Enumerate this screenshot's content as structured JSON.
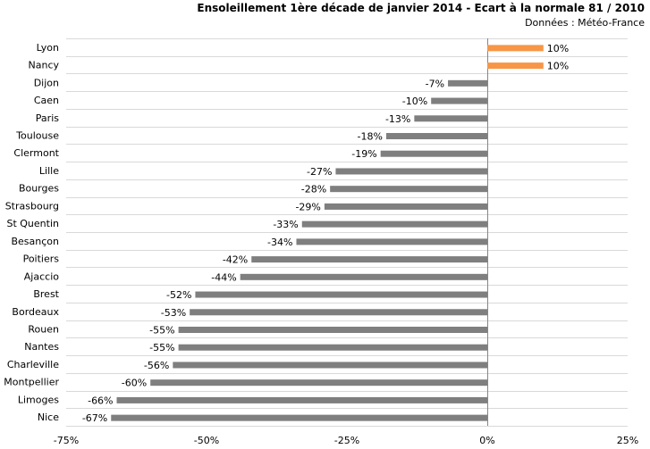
{
  "chart_data": {
    "type": "bar",
    "orientation": "horizontal",
    "title": "Ensoleillement 1ère décade de janvier 2014 - Ecart à la normale 81 / 2010",
    "subtitle": "Données : Météo-France",
    "categories": [
      "Lyon",
      "Nancy",
      "Dijon",
      "Caen",
      "Paris",
      "Toulouse",
      "Clermont",
      "Lille",
      "Bourges",
      "Strasbourg",
      "St Quentin",
      "Besançon",
      "Poitiers",
      "Ajaccio",
      "Brest",
      "Bordeaux",
      "Rouen",
      "Nantes",
      "Charleville",
      "Montpellier",
      "Limoges",
      "Nice"
    ],
    "values": [
      10,
      10,
      -7,
      -10,
      -13,
      -18,
      -19,
      -27,
      -28,
      -29,
      -33,
      -34,
      -42,
      -44,
      -52,
      -53,
      -55,
      -55,
      -56,
      -60,
      -66,
      -67
    ],
    "value_labels": [
      "10%",
      "10%",
      "-7%",
      "-10%",
      "-13%",
      "-18%",
      "-19%",
      "-27%",
      "-28%",
      "-29%",
      "-33%",
      "-34%",
      "-42%",
      "-44%",
      "-52%",
      "-53%",
      "-55%",
      "-55%",
      "-56%",
      "-60%",
      "-66%",
      "-67%"
    ],
    "xlim": [
      -75,
      25
    ],
    "x_ticks": [
      -75,
      -50,
      -25,
      0,
      25
    ],
    "x_tick_labels": [
      "-75%",
      "-50%",
      "-25%",
      "0%",
      "25%"
    ],
    "grid": true,
    "colors": {
      "positive": "#F79646",
      "negative": "#7F7F7F",
      "grid": "#D9D9D9",
      "axis": "#868686"
    }
  }
}
